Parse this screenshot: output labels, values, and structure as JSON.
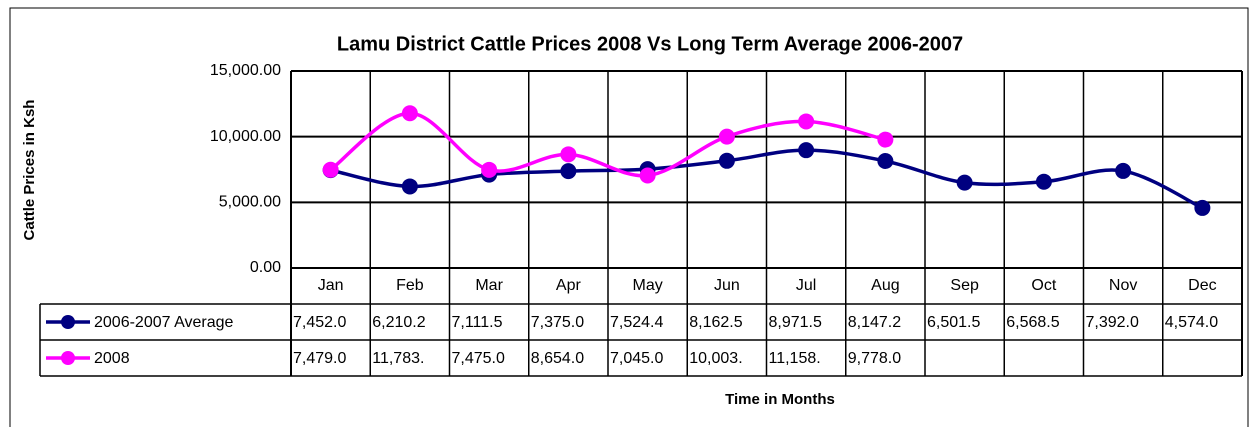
{
  "chart_data": {
    "type": "line",
    "title": "Lamu District Cattle Prices 2008 Vs Long Term Average 2006-2007",
    "y_label": "Cattle Prices in Ksh",
    "x_label": "Time in Months",
    "categories": [
      "Jan",
      "Feb",
      "Mar",
      "Apr",
      "May",
      "Jun",
      "Jul",
      "Aug",
      "Sep",
      "Oct",
      "Nov",
      "Dec"
    ],
    "series": [
      {
        "name": "2006-2007 Average",
        "color": "#000080",
        "values": [
          7452.0,
          6210.2,
          7111.5,
          7375.0,
          7524.4,
          8162.5,
          8971.5,
          8147.2,
          6501.5,
          6568.5,
          7392.0,
          4574.0
        ],
        "value_labels": [
          "7,452.0",
          "6,210.2",
          "7,111.5",
          "7,375.0",
          "7,524.4",
          "8,162.5",
          "8,971.5",
          "8,147.2",
          "6,501.5",
          "6,568.5",
          "7,392.0",
          "4,574.0"
        ]
      },
      {
        "name": "2008",
        "color": "#ff00ff",
        "values": [
          7479.0,
          11783,
          7475.0,
          8654.0,
          7045.0,
          10003,
          11158,
          9778.0,
          null,
          null,
          null,
          null
        ],
        "value_labels": [
          "7,479.0",
          "11,783.",
          "7,475.0",
          "8,654.0",
          "7,045.0",
          "10,003.",
          "11,158.",
          "9,778.0",
          null,
          null,
          null,
          null
        ]
      }
    ],
    "ylim": [
      0,
      15000
    ],
    "yticks": [
      {
        "value": 0,
        "label": "0.00"
      },
      {
        "value": 5000,
        "label": "5,000.00"
      },
      {
        "value": 10000,
        "label": "10,000.00"
      },
      {
        "value": 15000,
        "label": "15,000.00"
      }
    ],
    "grid": true,
    "smooth": true
  }
}
